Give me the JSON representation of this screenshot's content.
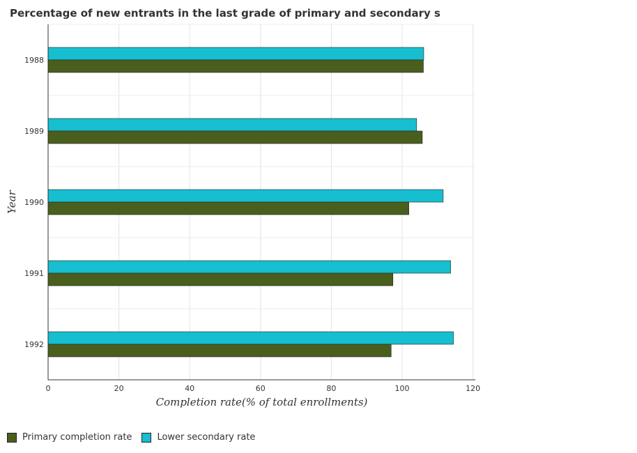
{
  "chart_data": {
    "type": "bar",
    "orientation": "horizontal",
    "title": "Percentage of new entrants in the last grade of primary  and secondary s",
    "xlabel": "Completion rate(% of total enrollments)",
    "ylabel": "Year",
    "categories": [
      "1988",
      "1989",
      "1990",
      "1991",
      "1992"
    ],
    "xlim": [
      0,
      120
    ],
    "xticks": [
      0,
      20,
      40,
      60,
      80,
      100,
      120
    ],
    "xtick_labels": [
      "0",
      "20",
      "40",
      "60",
      "80",
      "100",
      "120"
    ],
    "grid": true,
    "legend_position": "bottom-left",
    "series": [
      {
        "name": "Primary completion rate",
        "color": "#4a5e1e",
        "values": [
          106.0,
          105.7,
          101.9,
          97.4,
          96.9
        ]
      },
      {
        "name": "Lower secondary rate",
        "color": "#17becf",
        "values": [
          106.1,
          104.1,
          111.6,
          113.7,
          114.5
        ]
      }
    ]
  }
}
